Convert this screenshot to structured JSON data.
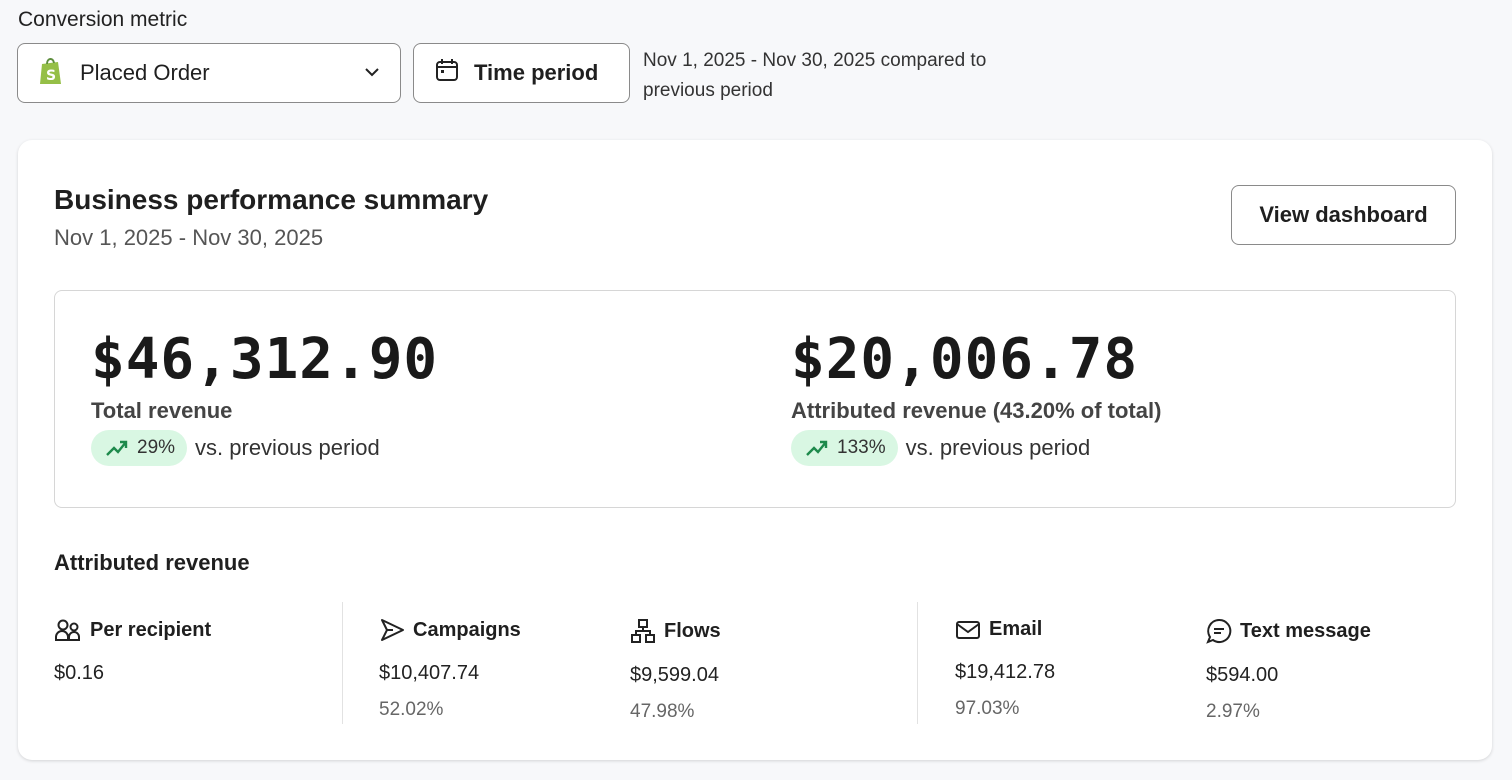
{
  "filters": {
    "conversion_metric_label": "Conversion metric",
    "metric_value": "Placed Order",
    "time_period_label": "Time period",
    "range_text": "Nov 1, 2025 - Nov 30, 2025 compared to previous period"
  },
  "summary": {
    "title": "Business performance summary",
    "date_range": "Nov 1, 2025 - Nov 30, 2025",
    "view_dashboard": "View dashboard",
    "total": {
      "value": "$46,312.90",
      "label": "Total revenue",
      "delta": "29%",
      "comparison": "vs. previous period"
    },
    "attributed": {
      "value": "$20,006.78",
      "label": "Attributed revenue (43.20% of total)",
      "delta": "133%",
      "comparison": "vs. previous period"
    }
  },
  "attributed_revenue": {
    "title": "Attributed revenue",
    "items": [
      {
        "label": "Per recipient",
        "value": "$0.16",
        "icon": "users-icon"
      },
      {
        "label": "Campaigns",
        "value": "$10,407.74",
        "percent": "52.02%",
        "icon": "send-icon"
      },
      {
        "label": "Flows",
        "value": "$9,599.04",
        "percent": "47.98%",
        "icon": "flow-icon"
      },
      {
        "label": "Email",
        "value": "$19,412.78",
        "percent": "97.03%",
        "icon": "mail-icon"
      },
      {
        "label": "Text message",
        "value": "$594.00",
        "percent": "2.97%",
        "icon": "message-icon"
      }
    ]
  },
  "colors": {
    "positive_bg": "#d9f7e3",
    "positive_icon": "#1e8a4c",
    "shopify_green": "#95bf47"
  }
}
